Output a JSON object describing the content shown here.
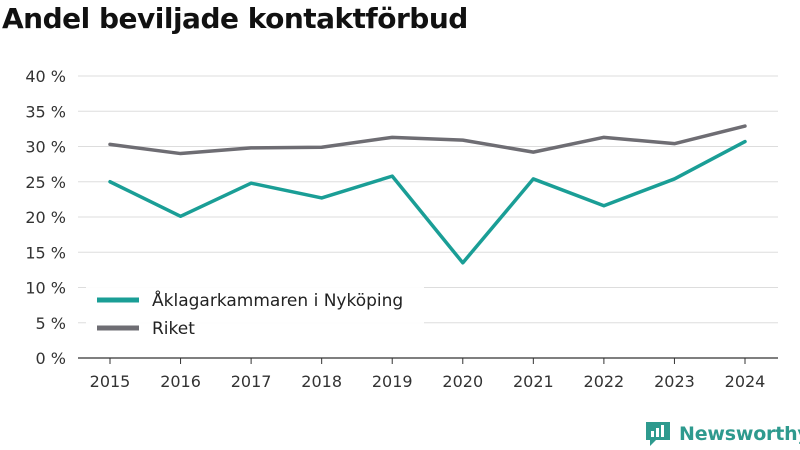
{
  "chart_data": {
    "type": "line",
    "title": "Andel beviljade kontaktförbud",
    "xlabel": "",
    "ylabel": "",
    "x": [
      "2015",
      "2016",
      "2017",
      "2018",
      "2019",
      "2020",
      "2021",
      "2022",
      "2023",
      "2024"
    ],
    "ylim": [
      0,
      40
    ],
    "yticks": [
      0,
      5,
      10,
      15,
      20,
      25,
      30,
      35,
      40
    ],
    "ytick_labels": [
      "0 %",
      "5 %",
      "10 %",
      "15 %",
      "20 %",
      "25 %",
      "30 %",
      "35 %",
      "40 %"
    ],
    "grid": true,
    "legend_position": "bottom-left",
    "series": [
      {
        "name": "Åklagarkammaren i Nyköping",
        "color": "#1a9e96",
        "values": [
          25.0,
          20.1,
          24.8,
          22.7,
          25.8,
          13.5,
          25.4,
          21.6,
          25.4,
          30.7
        ]
      },
      {
        "name": "Riket",
        "color": "#6e6d73",
        "values": [
          30.3,
          29.0,
          29.8,
          29.9,
          31.3,
          30.9,
          29.2,
          31.3,
          30.4,
          32.9
        ]
      }
    ]
  },
  "brand": {
    "name": "Newsworthy",
    "color": "#2e9a8e"
  }
}
